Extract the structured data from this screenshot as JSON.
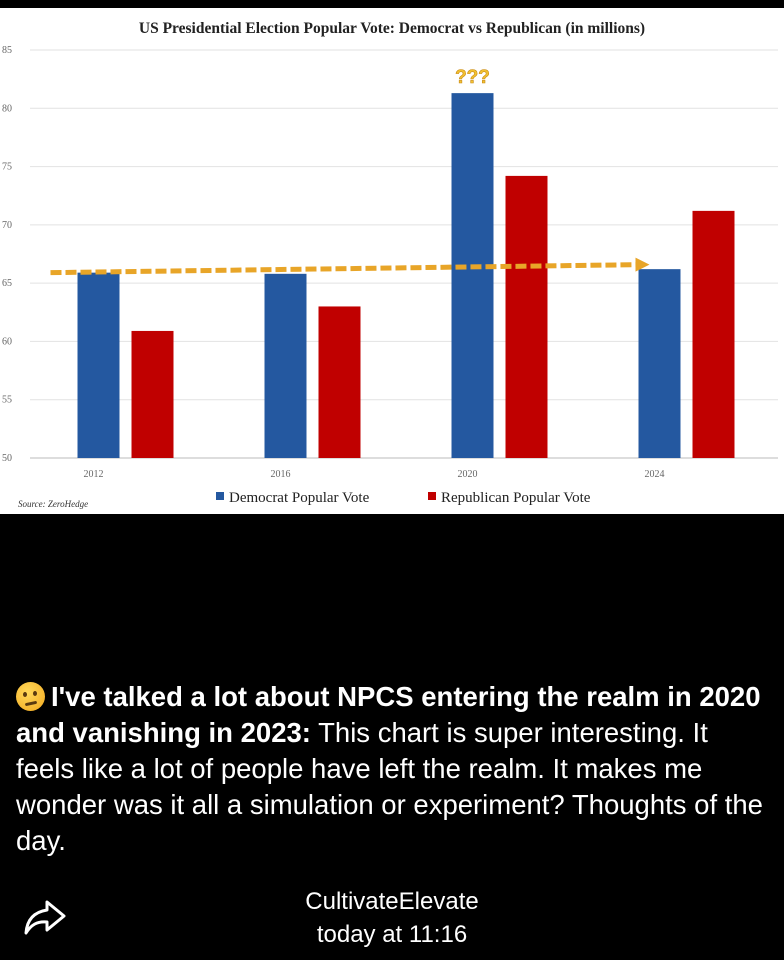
{
  "chart_data": {
    "type": "bar",
    "title": "US Presidential Election Popular Vote: Democrat vs Republican (in millions)",
    "categories": [
      "2012",
      "2016",
      "2020",
      "2024"
    ],
    "series": [
      {
        "name": "Democrat Popular Vote",
        "color": "#2458a0",
        "values": [
          65.9,
          65.8,
          81.3,
          66.2
        ]
      },
      {
        "name": "Republican Popular Vote",
        "color": "#c00000",
        "values": [
          60.9,
          63.0,
          74.2,
          71.2
        ]
      }
    ],
    "ylim": [
      50,
      85
    ],
    "yticks": [
      "50",
      "55",
      "60",
      "65",
      "70",
      "75",
      "80",
      "85"
    ],
    "annotation": "???",
    "trend_level": 65.9,
    "grid": true,
    "legend": "bottom",
    "source": "Source: ZeroHedge"
  },
  "post": {
    "caption_bold": "I've talked a lot about NPCS entering the realm in 2020 and vanishing in 2023:",
    "caption_rest": " This chart is super interesting. It feels like a lot of people have left the realm. It makes me wonder was it all a simulation or experiment? Thoughts of the day.",
    "emoji": "thinking-face-icon",
    "author": "CultivateElevate",
    "time": "today at 11:16",
    "share_icon": "share-arrow-icon"
  }
}
